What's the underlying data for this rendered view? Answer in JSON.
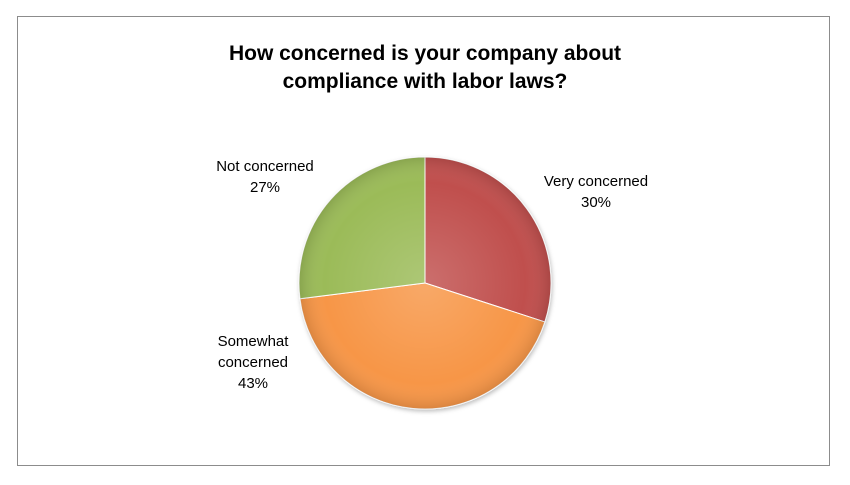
{
  "chart_data": {
    "type": "pie",
    "title_lines": [
      "How concerned is your company about",
      "compliance with labor laws?"
    ],
    "slices": [
      {
        "label": "Very concerned",
        "value": 30,
        "value_label": "30%",
        "color": "#c0504d"
      },
      {
        "label": "Somewhat concerned",
        "value": 43,
        "value_label": "43%",
        "color": "#f79646"
      },
      {
        "label": "Not concerned",
        "value": 27,
        "value_label": "27%",
        "color": "#9bbb59"
      }
    ],
    "start_angle_deg": 0,
    "direction": "clockwise",
    "legend": "none"
  }
}
